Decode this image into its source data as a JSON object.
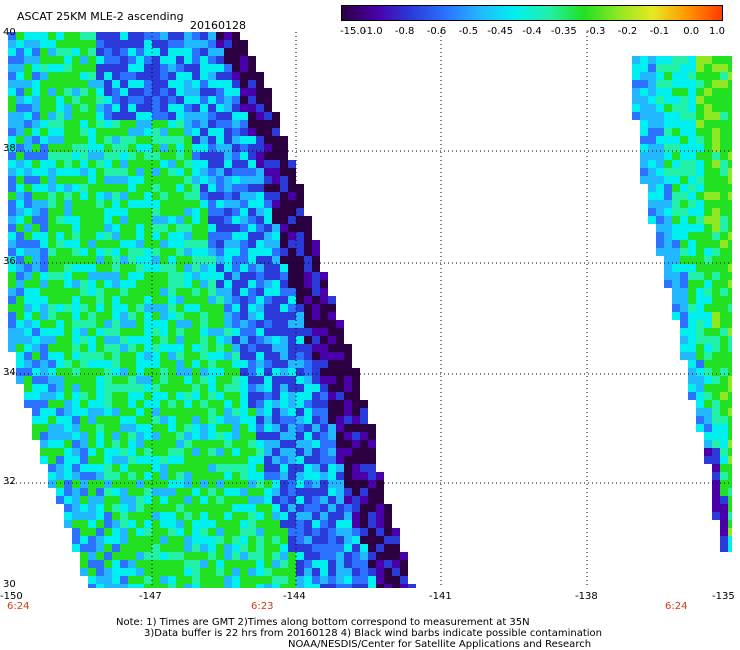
{
  "header": {
    "title": "ASCAT 25KM MLE-2 ascending",
    "date": "20160128"
  },
  "colorbar": {
    "labels": [
      "-15.0",
      "-1.0",
      "-0.8",
      "-0.6",
      "-0.5",
      "-0.45",
      "-0.4",
      "-0.35",
      "-0.3",
      "-0.2",
      "-0.1",
      "0.0",
      "1.0"
    ]
  },
  "axes": {
    "lat_labels": [
      "40",
      "38",
      "36",
      "34",
      "32",
      "30"
    ],
    "lon_labels": [
      "-150",
      "-147",
      "-144",
      "-141",
      "-138",
      "-135"
    ]
  },
  "swath_times": [
    "6:24",
    "6:23",
    "6:24"
  ],
  "notes": {
    "line1": "Note: 1) Times are GMT 2)Times along bottom correspond to measurement at 35N",
    "line2": "3)Data buffer is 22 hrs from 20160128 4) Black wind barbs indicate possible contamination",
    "line3": "NOAA/NESDIS/Center for Satellite Applications and Research"
  },
  "colors": {
    "scale": [
      "#2a0040",
      "#4a00a8",
      "#2a3ad8",
      "#2a72ff",
      "#22b8ff",
      "#00f0f0",
      "#22f0a8",
      "#22e022",
      "#8ee822",
      "#e8e822",
      "#ff9600",
      "#ff3c00"
    ],
    "grid": "#000000",
    "time_label": "#d23a14"
  }
}
